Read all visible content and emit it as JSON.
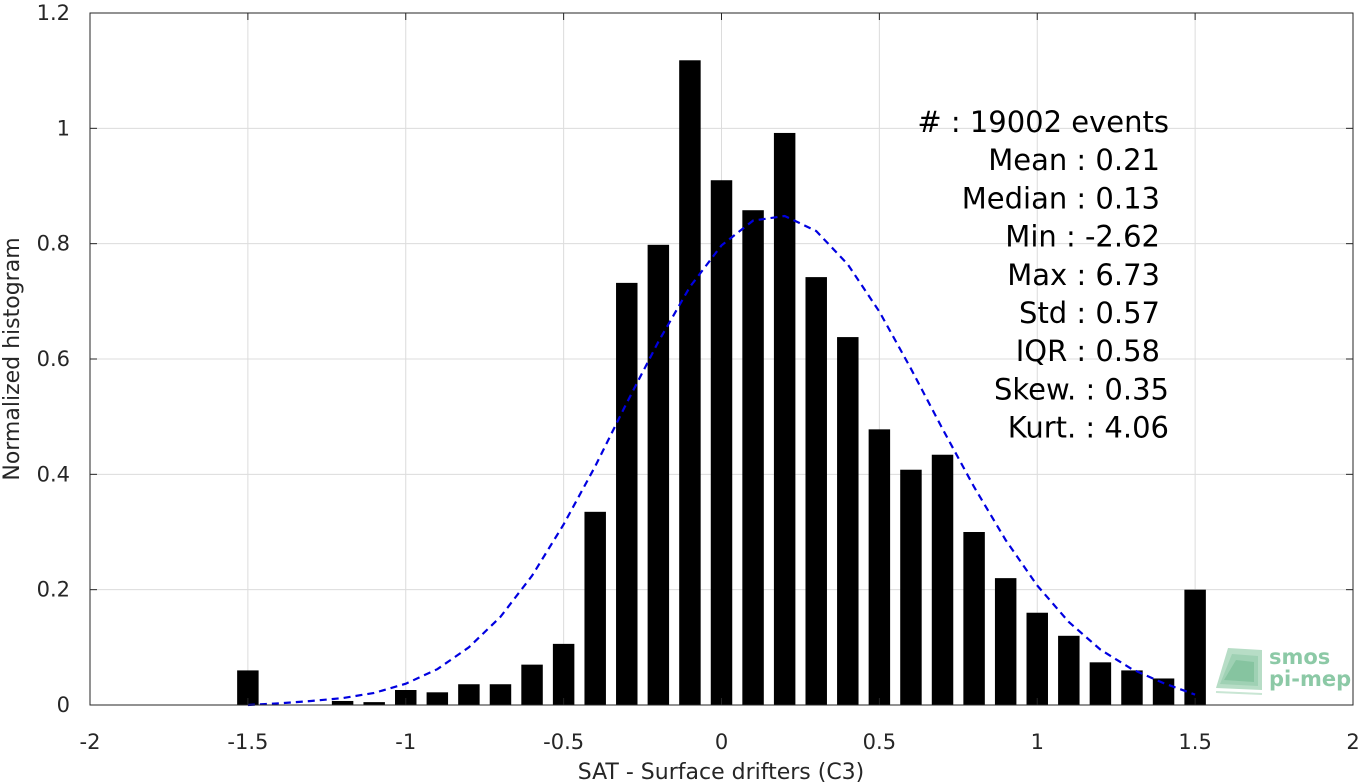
{
  "chart_data": {
    "type": "bar",
    "xlabel": "SAT - Surface drifters (C3)",
    "ylabel": "Normalized histogram",
    "xlim": [
      -2,
      2
    ],
    "ylim": [
      0,
      1.2
    ],
    "grid": true,
    "x_ticks": [
      "-2",
      "-1.5",
      "-1",
      "-0.5",
      "0",
      "0.5",
      "1",
      "1.5",
      "2"
    ],
    "y_ticks": [
      "0",
      "0.2",
      "0.4",
      "0.6",
      "0.8",
      "1",
      "1.2"
    ],
    "bar_color": "#000000",
    "bars": {
      "x": [
        -1.5,
        -1.2,
        -1.1,
        -1.0,
        -0.9,
        -0.8,
        -0.7,
        -0.6,
        -0.5,
        -0.4,
        -0.3,
        -0.2,
        -0.1,
        0.0,
        0.1,
        0.2,
        0.3,
        0.4,
        0.5,
        0.6,
        0.7,
        0.8,
        0.9,
        1.0,
        1.1,
        1.2,
        1.3,
        1.4,
        1.5
      ],
      "values": [
        0.06,
        0.007,
        0.005,
        0.026,
        0.022,
        0.036,
        0.036,
        0.07,
        0.106,
        0.335,
        0.732,
        0.798,
        1.118,
        0.91,
        0.858,
        0.992,
        0.742,
        0.638,
        0.478,
        0.408,
        0.434,
        0.3,
        0.22,
        0.16,
        0.12,
        0.074,
        0.06,
        0.046,
        0.2
      ]
    },
    "fit": {
      "type": "gaussian",
      "style": "dashed",
      "color": "#0000e0",
      "x": [
        -1.5,
        -1.4,
        -1.3,
        -1.2,
        -1.1,
        -1.0,
        -0.9,
        -0.8,
        -0.7,
        -0.6,
        -0.5,
        -0.4,
        -0.3,
        -0.2,
        -0.1,
        0.0,
        0.1,
        0.2,
        0.3,
        0.4,
        0.5,
        0.6,
        0.7,
        0.8,
        0.9,
        1.0,
        1.1,
        1.2,
        1.3,
        1.4,
        1.5
      ],
      "y": [
        0.0,
        0.003,
        0.007,
        0.012,
        0.021,
        0.037,
        0.062,
        0.1,
        0.153,
        0.224,
        0.313,
        0.414,
        0.524,
        0.63,
        0.725,
        0.797,
        0.84,
        0.848,
        0.822,
        0.764,
        0.682,
        0.583,
        0.479,
        0.378,
        0.286,
        0.207,
        0.144,
        0.096,
        0.062,
        0.038,
        0.018
      ]
    },
    "stats": [
      "#   : 19002 events",
      "Mean : 0.21",
      "Median : 0.13",
      "Min : -2.62",
      "Max : 6.73",
      "Std : 0.57",
      "IQR : 0.58",
      "Skew. : 0.35",
      "Kurt. : 4.06"
    ]
  },
  "logo": {
    "line1": "smos",
    "line2": "pi-mep"
  }
}
